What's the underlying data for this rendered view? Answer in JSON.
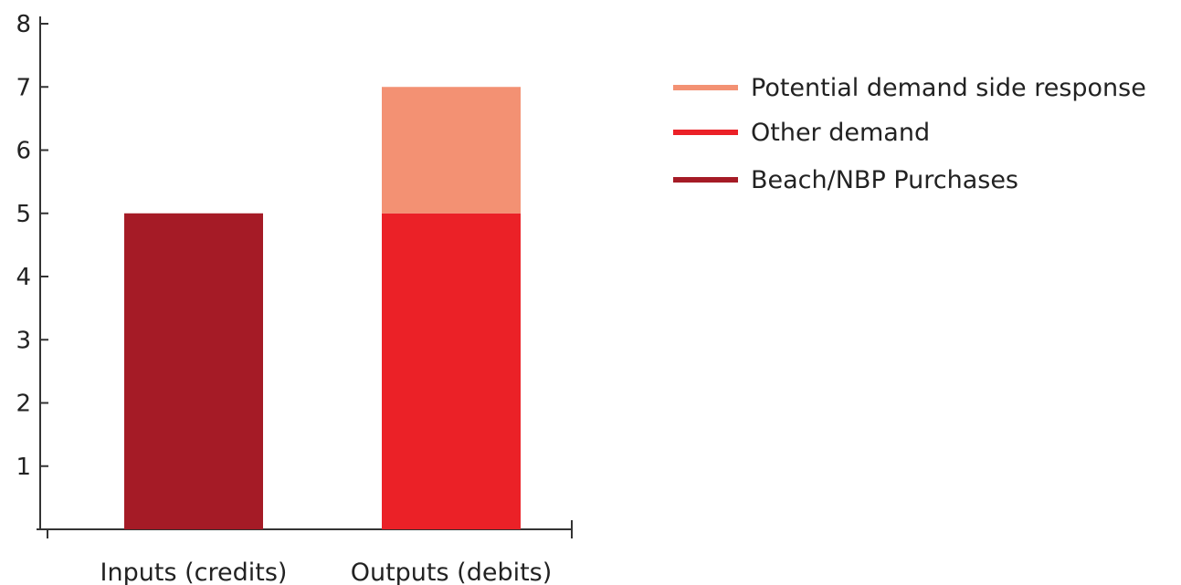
{
  "chart_data": {
    "type": "bar",
    "stacked": true,
    "title": "",
    "xlabel": "",
    "ylabel": "",
    "ylim": [
      0,
      8
    ],
    "yticks": [
      1,
      2,
      3,
      4,
      5,
      6,
      7,
      8
    ],
    "categories": [
      "Inputs (credits)",
      "Outputs (debits)"
    ],
    "series": [
      {
        "name": "Beach/NBP Purchases",
        "color": "#a51b26",
        "values": [
          5,
          0
        ]
      },
      {
        "name": "Other demand",
        "color": "#eb2127",
        "values": [
          0,
          5
        ]
      },
      {
        "name": "Potential demand side response",
        "color": "#f39173",
        "values": [
          0,
          2
        ]
      }
    ],
    "legend": {
      "position": "top-right",
      "order": [
        "Potential demand side response",
        "Other demand",
        "Beach/NBP Purchases"
      ]
    },
    "grid": false
  }
}
